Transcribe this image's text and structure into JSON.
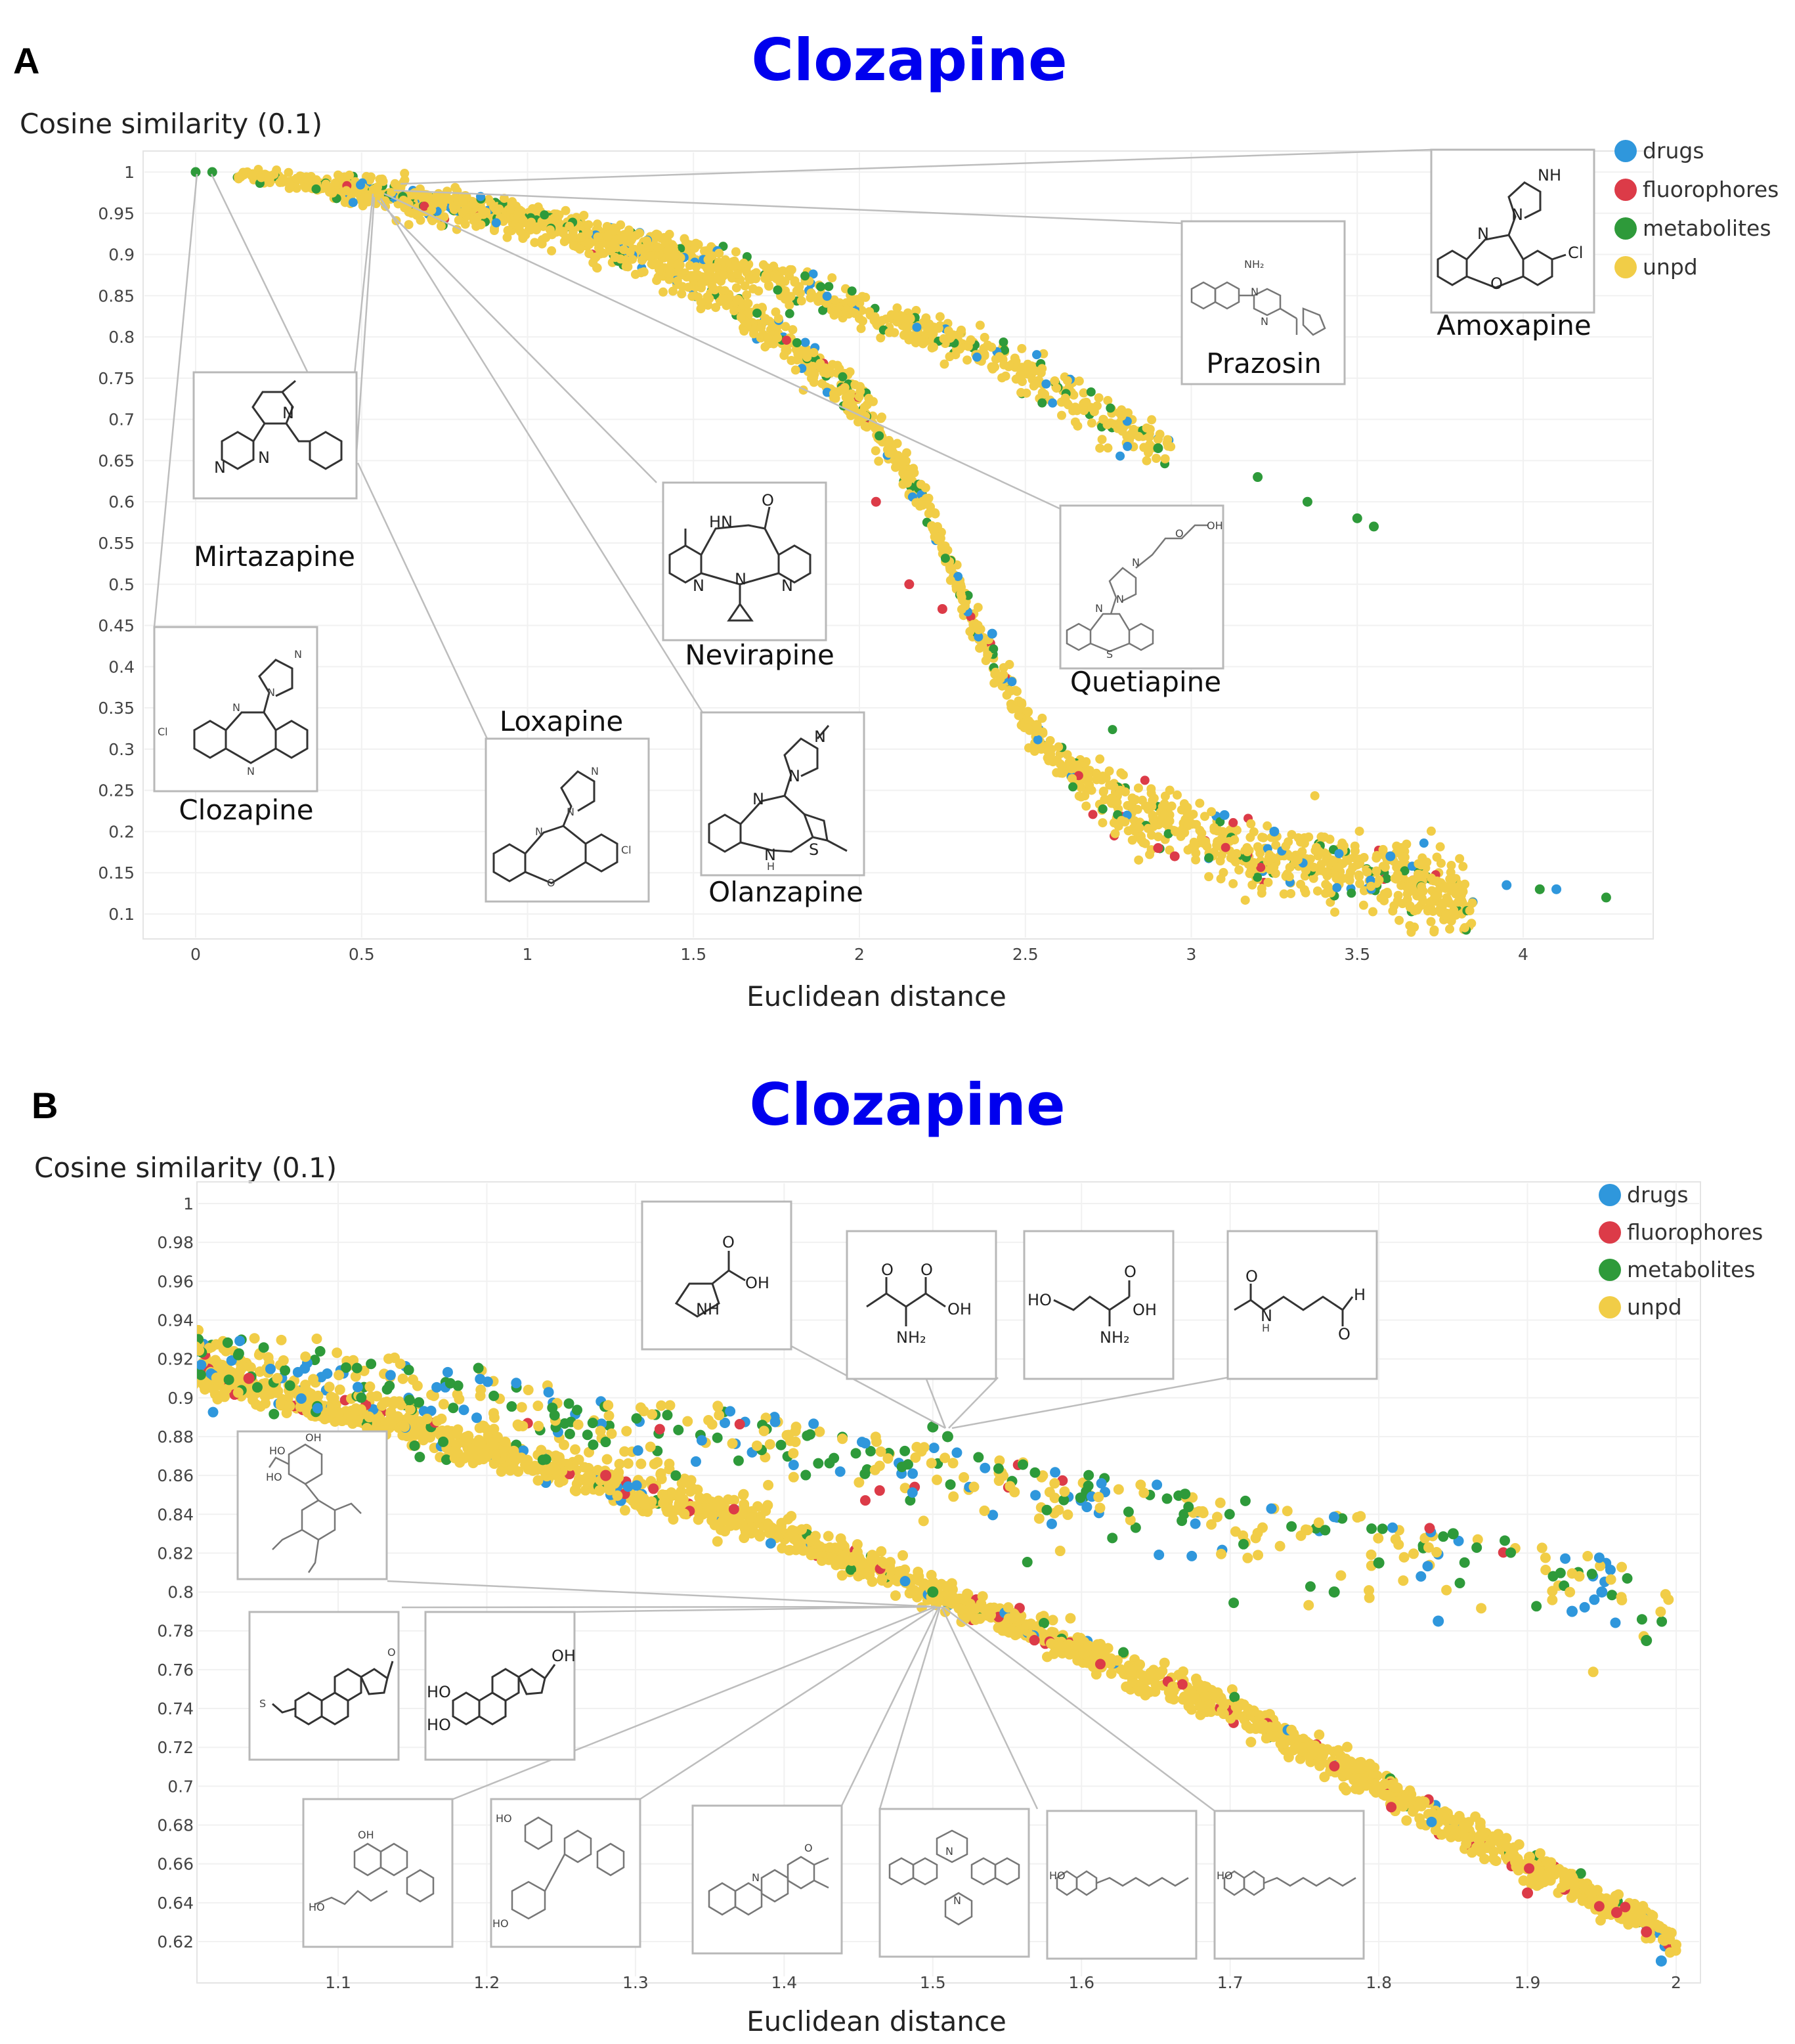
{
  "colors": {
    "drugs": "#2f97dc",
    "fluorophores": "#dc3b48",
    "metabolites": "#2e9a3a",
    "unpd": "#f1cd47",
    "title": "#0000ee"
  },
  "legend": [
    {
      "key": "drugs",
      "label": "drugs",
      "color": "#2f97dc"
    },
    {
      "key": "fluorophores",
      "label": "fluorophores",
      "color": "#dc3b48"
    },
    {
      "key": "metabolites",
      "label": "metabolites",
      "color": "#2e9a3a"
    },
    {
      "key": "unpd",
      "label": "unpd",
      "color": "#f1cd47"
    }
  ],
  "panelA": {
    "letter": "A",
    "title": "Clozapine",
    "labels": {
      "Mirtazapine": "Mirtazapine",
      "Nevirapine": "Nevirapine",
      "Quetiapine": "Quetiapine",
      "Prazosin": "Prazosin",
      "Amoxapine": "Amoxapine",
      "Clozapine": "Clozapine",
      "Loxapine": "Loxapine",
      "Olanzapine": "Olanzapine"
    }
  },
  "panelB": {
    "letter": "B",
    "title": "Clozapine"
  },
  "chart_data": [
    {
      "type": "scatter",
      "title": "Clozapine",
      "xlabel": "Euclidean distance",
      "ylabel": "Cosine similarity (0.1)",
      "xlim": [
        -0.15,
        4.4
      ],
      "ylim": [
        0.08,
        1.01
      ],
      "xticks": [
        "0",
        "0.5",
        "1",
        "1.5",
        "2",
        "2.5",
        "3",
        "3.5",
        "4"
      ],
      "yticks": [
        "1",
        "0.95",
        "0.9",
        "0.85",
        "0.8",
        "0.75",
        "0.7",
        "0.65",
        "0.6",
        "0.55",
        "0.5",
        "0.45",
        "0.4",
        "0.35",
        "0.3",
        "0.25",
        "0.2",
        "0.15",
        "0.1"
      ],
      "series": [
        {
          "name": "unpd",
          "description": "dense yellow band along two branches",
          "upper_branch": [
            [
              0.15,
              0.998
            ],
            [
              0.5,
              0.978
            ],
            [
              1.0,
              0.945
            ],
            [
              1.5,
              0.9
            ],
            [
              2.0,
              0.835
            ],
            [
              2.5,
              0.76
            ],
            [
              2.9,
              0.665
            ]
          ],
          "lower_branch": [
            [
              0.5,
              0.978
            ],
            [
              1.0,
              0.94
            ],
            [
              1.4,
              0.89
            ],
            [
              1.7,
              0.82
            ],
            [
              2.0,
              0.72
            ],
            [
              2.2,
              0.6
            ],
            [
              2.35,
              0.45
            ],
            [
              2.55,
              0.3
            ],
            [
              2.8,
              0.23
            ],
            [
              3.2,
              0.17
            ],
            [
              3.6,
              0.145
            ],
            [
              3.85,
              0.11
            ]
          ]
        },
        {
          "name": "metabolites",
          "points": [
            [
              0,
              1
            ],
            [
              0.05,
              1
            ],
            [
              2.9,
              0.665
            ],
            [
              3.2,
              0.63
            ],
            [
              3.35,
              0.6
            ],
            [
              3.5,
              0.58
            ],
            [
              3.55,
              0.57
            ],
            [
              4.05,
              0.13
            ],
            [
              4.25,
              0.12
            ]
          ]
        },
        {
          "name": "drugs",
          "points": [
            [
              2.4,
              0.44
            ],
            [
              3.1,
              0.22
            ],
            [
              3.25,
              0.2
            ],
            [
              3.6,
              0.17
            ],
            [
              3.95,
              0.135
            ],
            [
              4.1,
              0.13
            ]
          ]
        },
        {
          "name": "fluorophores",
          "points": [
            [
              2.05,
              0.6
            ],
            [
              2.15,
              0.5
            ],
            [
              2.25,
              0.47
            ],
            [
              2.9,
              0.18
            ],
            [
              2.95,
              0.17
            ]
          ]
        }
      ],
      "annotations": [
        "Mirtazapine",
        "Nevirapine",
        "Quetiapine",
        "Prazosin",
        "Amoxapine",
        "Clozapine",
        "Loxapine",
        "Olanzapine"
      ]
    },
    {
      "type": "scatter",
      "title": "Clozapine",
      "xlabel": "Euclidean distance",
      "ylabel": "Cosine similarity (0.1)",
      "xlim": [
        1.005,
        2.005
      ],
      "ylim": [
        0.608,
        1.0
      ],
      "xticks": [
        "1.1",
        "1.2",
        "1.3",
        "1.4",
        "1.5",
        "1.6",
        "1.7",
        "1.8",
        "1.9",
        "2"
      ],
      "yticks": [
        "1",
        "0.98",
        "0.96",
        "0.94",
        "0.92",
        "0.9",
        "0.88",
        "0.86",
        "0.84",
        "0.82",
        "0.8",
        "0.78",
        "0.76",
        "0.74",
        "0.72",
        "0.7",
        "0.68",
        "0.66",
        "0.64",
        "0.62"
      ],
      "series": [
        {
          "name": "unpd",
          "description": "dense yellow diagonal band and scattered upper band",
          "lower_band": [
            [
              1.01,
              0.912
            ],
            [
              1.2,
              0.873
            ],
            [
              1.4,
              0.83
            ],
            [
              1.5,
              0.8
            ],
            [
              1.6,
              0.77
            ],
            [
              1.7,
              0.74
            ],
            [
              1.8,
              0.7
            ],
            [
              1.9,
              0.66
            ],
            [
              2.0,
              0.62
            ]
          ],
          "upper_band": [
            [
              1.01,
              0.94
            ],
            [
              1.3,
              0.905
            ],
            [
              1.5,
              0.875
            ],
            [
              1.7,
              0.85
            ],
            [
              1.9,
              0.825
            ],
            [
              2.0,
              0.81
            ]
          ]
        },
        {
          "name": "metabolites",
          "points": [
            [
              1.5,
              0.885
            ],
            [
              1.51,
              0.88
            ],
            [
              1.5,
              0.8
            ],
            [
              1.77,
              0.8
            ],
            [
              1.8,
              0.815
            ],
            [
              1.85,
              0.83
            ],
            [
              1.98,
              0.775
            ]
          ]
        },
        {
          "name": "drugs",
          "points": [
            [
              1.84,
              0.785
            ],
            [
              1.93,
              0.79
            ],
            [
              1.95,
              0.8
            ],
            [
              1.99,
              0.61
            ]
          ]
        },
        {
          "name": "fluorophores",
          "points": [
            [
              1.04,
              0.91
            ],
            [
              1.28,
              0.86
            ],
            [
              1.96,
              0.635
            ],
            [
              1.98,
              0.625
            ],
            [
              1.9,
              0.645
            ]
          ]
        }
      ]
    }
  ]
}
